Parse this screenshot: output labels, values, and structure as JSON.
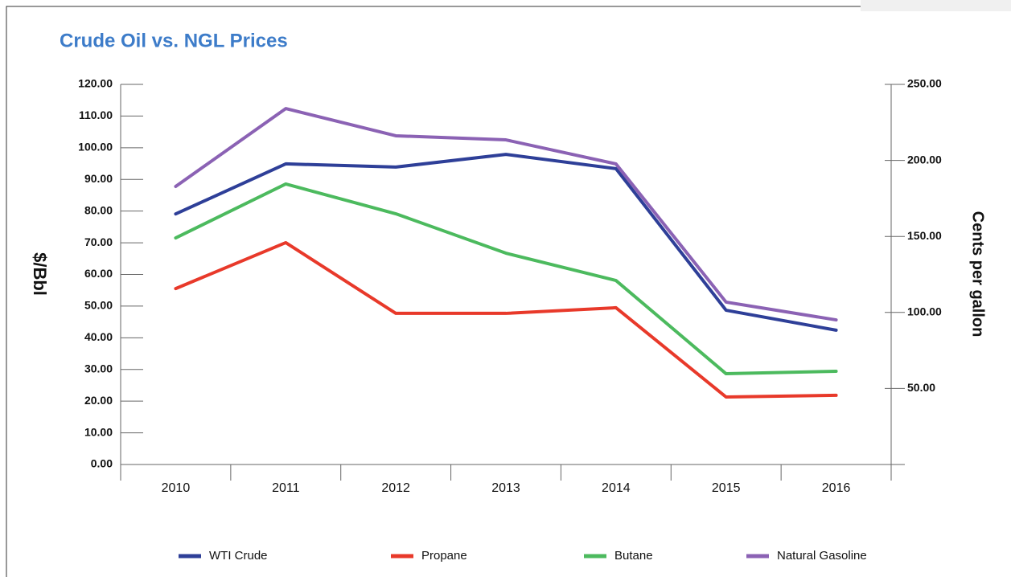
{
  "chart_data": {
    "type": "line",
    "title": "Crude Oil vs. NGL Prices",
    "ylabel": "$/Bbl",
    "y2label": "Cents per gallon",
    "categories": [
      "2010",
      "2011",
      "2012",
      "2013",
      "2014",
      "2015",
      "2016"
    ],
    "series": [
      {
        "name": "WTI Crude",
        "color": "#2e3f98",
        "values": [
          79.1,
          94.9,
          93.9,
          97.9,
          93.4,
          48.7,
          42.4
        ]
      },
      {
        "name": "Propane",
        "color": "#e8392a",
        "axis": "y2",
        "values": [
          115.7,
          145.9,
          99.4,
          99.4,
          103.1,
          44.4,
          45.5
        ]
      },
      {
        "name": "Butane",
        "color": "#4cba5e",
        "axis": "y2",
        "values": [
          149,
          184.5,
          164.9,
          139,
          121,
          59.7,
          61.3
        ]
      },
      {
        "name": "Natural Gasoline",
        "color": "#8b62b4",
        "axis": "y2",
        "values": [
          182.9,
          234.1,
          216.2,
          213.5,
          197.7,
          106.8,
          95.1
        ]
      }
    ],
    "ylim": [
      0,
      120
    ],
    "yticks": [
      {
        "value": 0,
        "label": "0.00"
      },
      {
        "value": 10,
        "label": "10.00"
      },
      {
        "value": 20,
        "label": "20.00"
      },
      {
        "value": 30,
        "label": "30.00"
      },
      {
        "value": 40,
        "label": "40.00"
      },
      {
        "value": 50,
        "label": "50.00"
      },
      {
        "value": 60,
        "label": "60.00"
      },
      {
        "value": 70,
        "label": "70.00"
      },
      {
        "value": 80,
        "label": "80.00"
      },
      {
        "value": 90,
        "label": "90.00"
      },
      {
        "value": 100,
        "label": "100.00"
      },
      {
        "value": 110,
        "label": "110.00"
      },
      {
        "value": 120,
        "label": "120.00"
      }
    ],
    "y2lim": [
      0,
      250
    ],
    "y2ticks": [
      {
        "value": 50,
        "label": "50.00"
      },
      {
        "value": 100,
        "label": "100.00"
      },
      {
        "value": 150,
        "label": "150.00"
      },
      {
        "value": 200,
        "label": "200.00"
      },
      {
        "value": 250,
        "label": "250.00"
      }
    ],
    "legend": "bottom"
  }
}
